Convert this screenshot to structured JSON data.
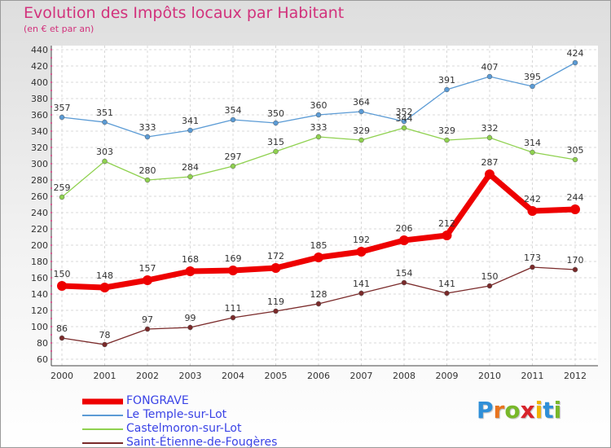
{
  "chart_data": {
    "type": "line",
    "title": "Evolution des Impôts locaux par Habitant",
    "subtitle": "(en € et par an)",
    "xlabel": "",
    "ylabel": "",
    "ylim": [
      60,
      440
    ],
    "ytick_step": 20,
    "grid": true,
    "categories": [
      "2000",
      "2001",
      "2002",
      "2003",
      "2004",
      "2005",
      "2006",
      "2007",
      "2008",
      "2009",
      "2010",
      "2011",
      "2012"
    ],
    "series": [
      {
        "name": "FONGRAVE",
        "color": "#ee0000",
        "emphasis": true,
        "values": [
          150,
          148,
          157,
          168,
          169,
          172,
          185,
          192,
          206,
          212,
          287,
          242,
          244
        ]
      },
      {
        "name": "Le Temple-sur-Lot",
        "color": "#5b9bd5",
        "emphasis": false,
        "values": [
          357,
          351,
          333,
          341,
          354,
          350,
          360,
          364,
          352,
          391,
          407,
          395,
          424
        ]
      },
      {
        "name": "Castelmoron-sur-Lot",
        "color": "#8fd14f",
        "emphasis": false,
        "values": [
          259,
          303,
          280,
          284,
          297,
          315,
          333,
          329,
          344,
          329,
          332,
          314,
          305
        ]
      },
      {
        "name": "Saint-Étienne-de-Fougères",
        "color": "#7a2a2a",
        "emphasis": false,
        "values": [
          86,
          78,
          97,
          99,
          111,
          119,
          128,
          141,
          154,
          141,
          150,
          173,
          170
        ]
      }
    ]
  },
  "logo": {
    "letters": [
      "P",
      "r",
      "o",
      "x",
      "i",
      "t",
      "i"
    ],
    "colors": [
      "#2f8fd8",
      "#e8741e",
      "#78b82a",
      "#d8232a",
      "#f0b400",
      "#2f8fd8",
      "#78b82a"
    ]
  }
}
